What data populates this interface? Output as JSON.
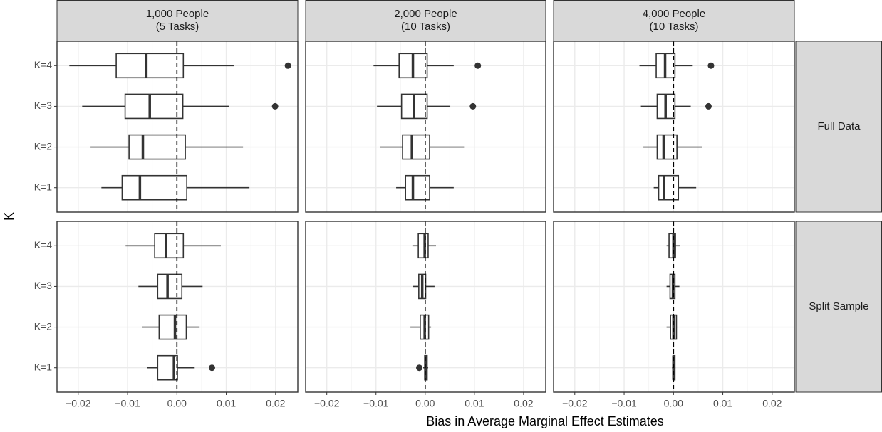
{
  "xlabel": "Bias in Average Marginal Effect Estimates",
  "ylabel": "K",
  "columns": [
    [
      "1,000 People",
      "(5 Tasks)"
    ],
    [
      "2,000 People",
      "(10 Tasks)"
    ],
    [
      "4,000 People",
      "(10 Tasks)"
    ]
  ],
  "rows": [
    "Full Data",
    "Split Sample"
  ],
  "categories": [
    "K=4",
    "K=3",
    "K=2",
    "K=1"
  ],
  "xlim": [
    -0.0243,
    0.0245
  ],
  "xticks": [
    {
      "value": -0.02,
      "label": "−0.02"
    },
    {
      "value": -0.01,
      "label": "−0.01"
    },
    {
      "value": 0,
      "label": "0.00"
    },
    {
      "value": 0.01,
      "label": "0.01"
    },
    {
      "value": 0.02,
      "label": "0.02"
    }
  ],
  "reference_x": 0,
  "grid": true,
  "chart_data": [
    {
      "type": "box",
      "boxes": [
        {
          "whisker_low": -0.0218,
          "q1": -0.0123,
          "median": -0.0062,
          "q3": 0.0013,
          "whisker_high": 0.0115,
          "outliers": [
            0.0225
          ]
        },
        {
          "whisker_low": -0.0192,
          "q1": -0.0105,
          "median": -0.0055,
          "q3": 0.0012,
          "whisker_high": 0.0105,
          "outliers": [
            0.0199
          ]
        },
        {
          "whisker_low": -0.0175,
          "q1": -0.0097,
          "median": -0.0069,
          "q3": 0.0017,
          "whisker_high": 0.0134,
          "outliers": []
        },
        {
          "whisker_low": -0.0153,
          "q1": -0.0111,
          "median": -0.0075,
          "q3": 0.002,
          "whisker_high": 0.0147,
          "outliers": []
        }
      ]
    },
    {
      "type": "box",
      "boxes": [
        {
          "whisker_low": -0.0105,
          "q1": -0.0053,
          "median": -0.0025,
          "q3": 0.0004,
          "whisker_high": 0.0058,
          "outliers": [
            0.0107
          ]
        },
        {
          "whisker_low": -0.0098,
          "q1": -0.0048,
          "median": -0.0023,
          "q3": 0.0004,
          "whisker_high": 0.0051,
          "outliers": [
            0.0097
          ]
        },
        {
          "whisker_low": -0.0091,
          "q1": -0.0046,
          "median": -0.0027,
          "q3": 0.0009,
          "whisker_high": 0.0079,
          "outliers": []
        },
        {
          "whisker_low": -0.0059,
          "q1": -0.004,
          "median": -0.0025,
          "q3": 0.0009,
          "whisker_high": 0.0058,
          "outliers": []
        }
      ]
    },
    {
      "type": "box",
      "boxes": [
        {
          "whisker_low": -0.0069,
          "q1": -0.0035,
          "median": -0.0017,
          "q3": 0.0003,
          "whisker_high": 0.0039,
          "outliers": [
            0.0076
          ]
        },
        {
          "whisker_low": -0.0066,
          "q1": -0.0033,
          "median": -0.0016,
          "q3": 0.0003,
          "whisker_high": 0.0035,
          "outliers": [
            0.0071
          ]
        },
        {
          "whisker_low": -0.0061,
          "q1": -0.0033,
          "median": -0.002,
          "q3": 0.0007,
          "whisker_high": 0.0058,
          "outliers": []
        },
        {
          "whisker_low": -0.004,
          "q1": -0.003,
          "median": -0.0019,
          "q3": 0.001,
          "whisker_high": 0.0046,
          "outliers": []
        }
      ]
    },
    {
      "type": "box",
      "boxes": [
        {
          "whisker_low": -0.0104,
          "q1": -0.0045,
          "median": -0.0022,
          "q3": 0.0013,
          "whisker_high": 0.0089,
          "outliers": []
        },
        {
          "whisker_low": -0.0078,
          "q1": -0.0039,
          "median": -0.0019,
          "q3": 0.001,
          "whisker_high": 0.0052,
          "outliers": []
        },
        {
          "whisker_low": -0.0071,
          "q1": -0.0036,
          "median": -0.0004,
          "q3": 0.0019,
          "whisker_high": 0.0046,
          "outliers": []
        },
        {
          "whisker_low": -0.0061,
          "q1": -0.0039,
          "median": -0.0006,
          "q3": 0.0001,
          "whisker_high": 0.0036,
          "outliers": [
            0.0071
          ]
        }
      ]
    },
    {
      "type": "box",
      "boxes": [
        {
          "whisker_low": -0.0026,
          "q1": -0.0014,
          "median": -0.0001,
          "q3": 0.0006,
          "whisker_high": 0.0022,
          "outliers": []
        },
        {
          "whisker_low": -0.0025,
          "q1": -0.0013,
          "median": -0.0006,
          "q3": 0.0001,
          "whisker_high": 0.0019,
          "outliers": []
        },
        {
          "whisker_low": -0.003,
          "q1": -0.001,
          "median": -0.0001,
          "q3": 0.0007,
          "whisker_high": 0.0012,
          "outliers": []
        },
        {
          "whisker_low": -0.0004,
          "q1": -0.0001,
          "median": 0.0001,
          "q3": 0.0004,
          "whisker_high": 0.0006,
          "outliers": [
            -0.0012
          ]
        }
      ]
    },
    {
      "type": "box",
      "boxes": [
        {
          "whisker_low": -0.0014,
          "q1": -0.0009,
          "median": 0,
          "q3": 0.0004,
          "whisker_high": 0.0014,
          "outliers": []
        },
        {
          "whisker_low": -0.0014,
          "q1": -0.0007,
          "median": -0.0001,
          "q3": 0.0003,
          "whisker_high": 0.0012,
          "outliers": []
        },
        {
          "whisker_low": -0.0014,
          "q1": -0.0006,
          "median": 0,
          "q3": 0.0006,
          "whisker_high": 0.0007,
          "outliers": []
        },
        {
          "whisker_low": -0.0003,
          "q1": -0.0001,
          "median": 0,
          "q3": 0.0003,
          "whisker_high": 0.0004,
          "outliers": []
        }
      ]
    }
  ]
}
